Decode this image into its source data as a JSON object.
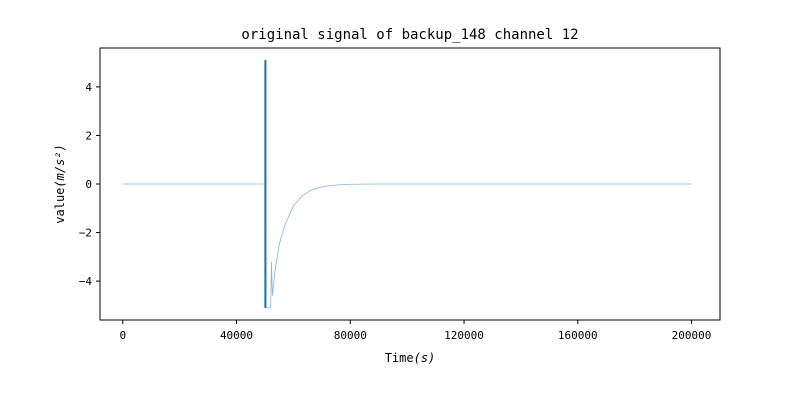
{
  "chart_data": {
    "type": "line",
    "title": "original signal of backup_148 channel 12",
    "xlabel_text": "Time",
    "xlabel_unit": "(s)",
    "ylabel_text": "value",
    "ylabel_unit": "(m/s²)",
    "xlim": [
      -8000,
      210000
    ],
    "ylim": [
      -5.6,
      5.6
    ],
    "x_ticks": [
      0,
      40000,
      80000,
      120000,
      160000,
      200000
    ],
    "x_tick_labels": [
      "0",
      "40000",
      "80000",
      "120000",
      "160000",
      "200000"
    ],
    "y_ticks": [
      -4,
      -2,
      0,
      2,
      4
    ],
    "y_tick_labels": [
      "−4",
      "−2",
      "0",
      "2",
      "4"
    ],
    "line_color": "#1f77b4",
    "grid": false,
    "series": [
      {
        "x": [
          0,
          10000,
          20000,
          30000,
          40000,
          49500,
          50000,
          50100,
          50200,
          50300,
          50400,
          52000,
          52300,
          52600,
          53500,
          55000,
          57000,
          60000,
          63000,
          66000,
          70000,
          75000,
          80000,
          90000,
          100000,
          120000,
          150000,
          180000,
          200000
        ],
        "y": [
          0,
          0,
          0,
          0,
          0,
          0,
          0,
          5.1,
          -5.1,
          5.1,
          -5.1,
          -5.1,
          -3.2,
          -4.6,
          -3.6,
          -2.5,
          -1.7,
          -0.9,
          -0.5,
          -0.26,
          -0.12,
          -0.04,
          -0.01,
          0,
          0,
          0,
          0,
          0,
          0
        ]
      }
    ]
  }
}
